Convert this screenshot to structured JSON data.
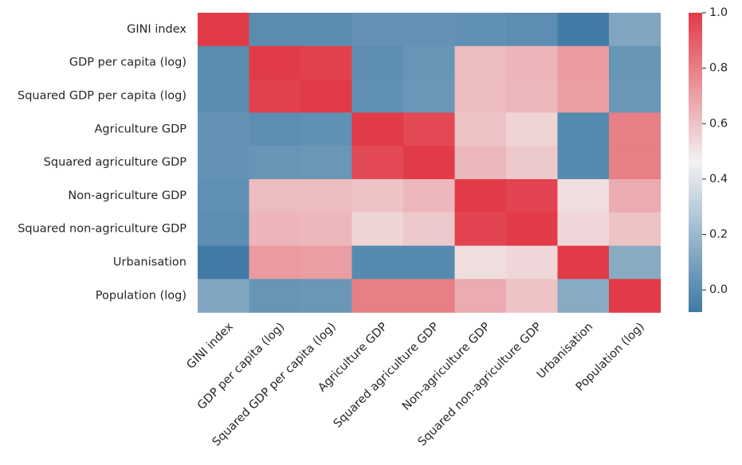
{
  "chart_data": {
    "type": "heatmap",
    "title": "",
    "xlabel": "",
    "ylabel": "",
    "labels": [
      "GINI index",
      "GDP per capita (log)",
      "Squared GDP per capita (log)",
      "Agriculture GDP",
      "Squared agriculture GDP",
      "Non-agriculture GDP",
      "Squared non-agriculture GDP",
      "Urbanisation",
      "Population (log)"
    ],
    "values": [
      [
        1.0,
        0.0,
        0.0,
        0.03,
        0.03,
        0.02,
        0.01,
        -0.07,
        0.12
      ],
      [
        0.0,
        1.0,
        0.98,
        0.01,
        0.04,
        0.62,
        0.64,
        0.72,
        0.04
      ],
      [
        0.0,
        0.98,
        1.0,
        0.02,
        0.05,
        0.62,
        0.63,
        0.71,
        0.05
      ],
      [
        0.03,
        0.01,
        0.02,
        1.0,
        0.96,
        0.6,
        0.55,
        -0.01,
        0.8
      ],
      [
        0.03,
        0.04,
        0.05,
        0.96,
        1.0,
        0.63,
        0.58,
        -0.01,
        0.8
      ],
      [
        0.02,
        0.62,
        0.62,
        0.6,
        0.63,
        1.0,
        0.97,
        0.52,
        0.67
      ],
      [
        0.01,
        0.64,
        0.63,
        0.55,
        0.58,
        0.97,
        1.0,
        0.54,
        0.6
      ],
      [
        -0.07,
        0.72,
        0.71,
        -0.01,
        -0.01,
        0.52,
        0.54,
        1.0,
        0.14
      ],
      [
        0.12,
        0.04,
        0.05,
        0.8,
        0.8,
        0.67,
        0.6,
        0.14,
        1.0
      ]
    ],
    "colorbar": {
      "min": -0.08,
      "max": 1.0,
      "ticks": [
        "0.0",
        "0.2",
        "0.4",
        "0.6",
        "0.8",
        "1.0"
      ],
      "colors": {
        "low": "#3f7aa5",
        "mid": "#f2f2f2",
        "high": "#e13b47"
      }
    }
  }
}
